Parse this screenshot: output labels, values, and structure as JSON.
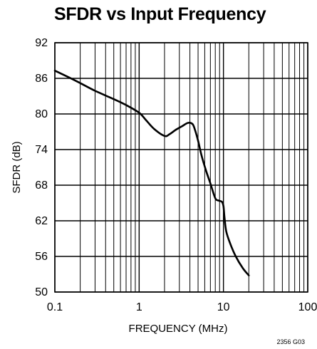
{
  "chart_data": {
    "type": "line",
    "title": "SFDR vs Input Frequency",
    "xlabel": "FREQUENCY (MHz)",
    "ylabel": "SFDR (dB)",
    "x_scale": "log",
    "xlim": [
      0.1,
      100
    ],
    "ylim": [
      50,
      92
    ],
    "x_ticks": [
      0.1,
      1,
      10,
      100
    ],
    "x_tick_labels": [
      "0.1",
      "1",
      "10",
      "100"
    ],
    "y_ticks": [
      50,
      56,
      62,
      68,
      74,
      80,
      86,
      92
    ],
    "y_tick_labels": [
      "50",
      "56",
      "62",
      "68",
      "74",
      "80",
      "86",
      "92"
    ],
    "grid": true,
    "series": [
      {
        "color": "#000000",
        "x": [
          0.1,
          0.15,
          0.2,
          0.3,
          0.5,
          0.7,
          1.0,
          1.2,
          1.5,
          2.0,
          2.3,
          2.7,
          3.2,
          3.8,
          4.3,
          4.6,
          5.0,
          5.5,
          6.2,
          7.0,
          8.0,
          8.8,
          9.6,
          10.0,
          10.3,
          10.8,
          12.0,
          14.0,
          17.0,
          20.0
        ],
        "y": [
          87.3,
          86.1,
          85.2,
          83.9,
          82.5,
          81.5,
          80.2,
          79.0,
          77.5,
          76.3,
          76.6,
          77.3,
          77.9,
          78.5,
          78.3,
          77.3,
          75.5,
          73.0,
          70.5,
          68.3,
          65.8,
          65.4,
          65.2,
          64.5,
          62.5,
          60.2,
          58.2,
          56.0,
          54.0,
          52.8
        ]
      }
    ],
    "annotations": [
      "2356 G03"
    ]
  }
}
